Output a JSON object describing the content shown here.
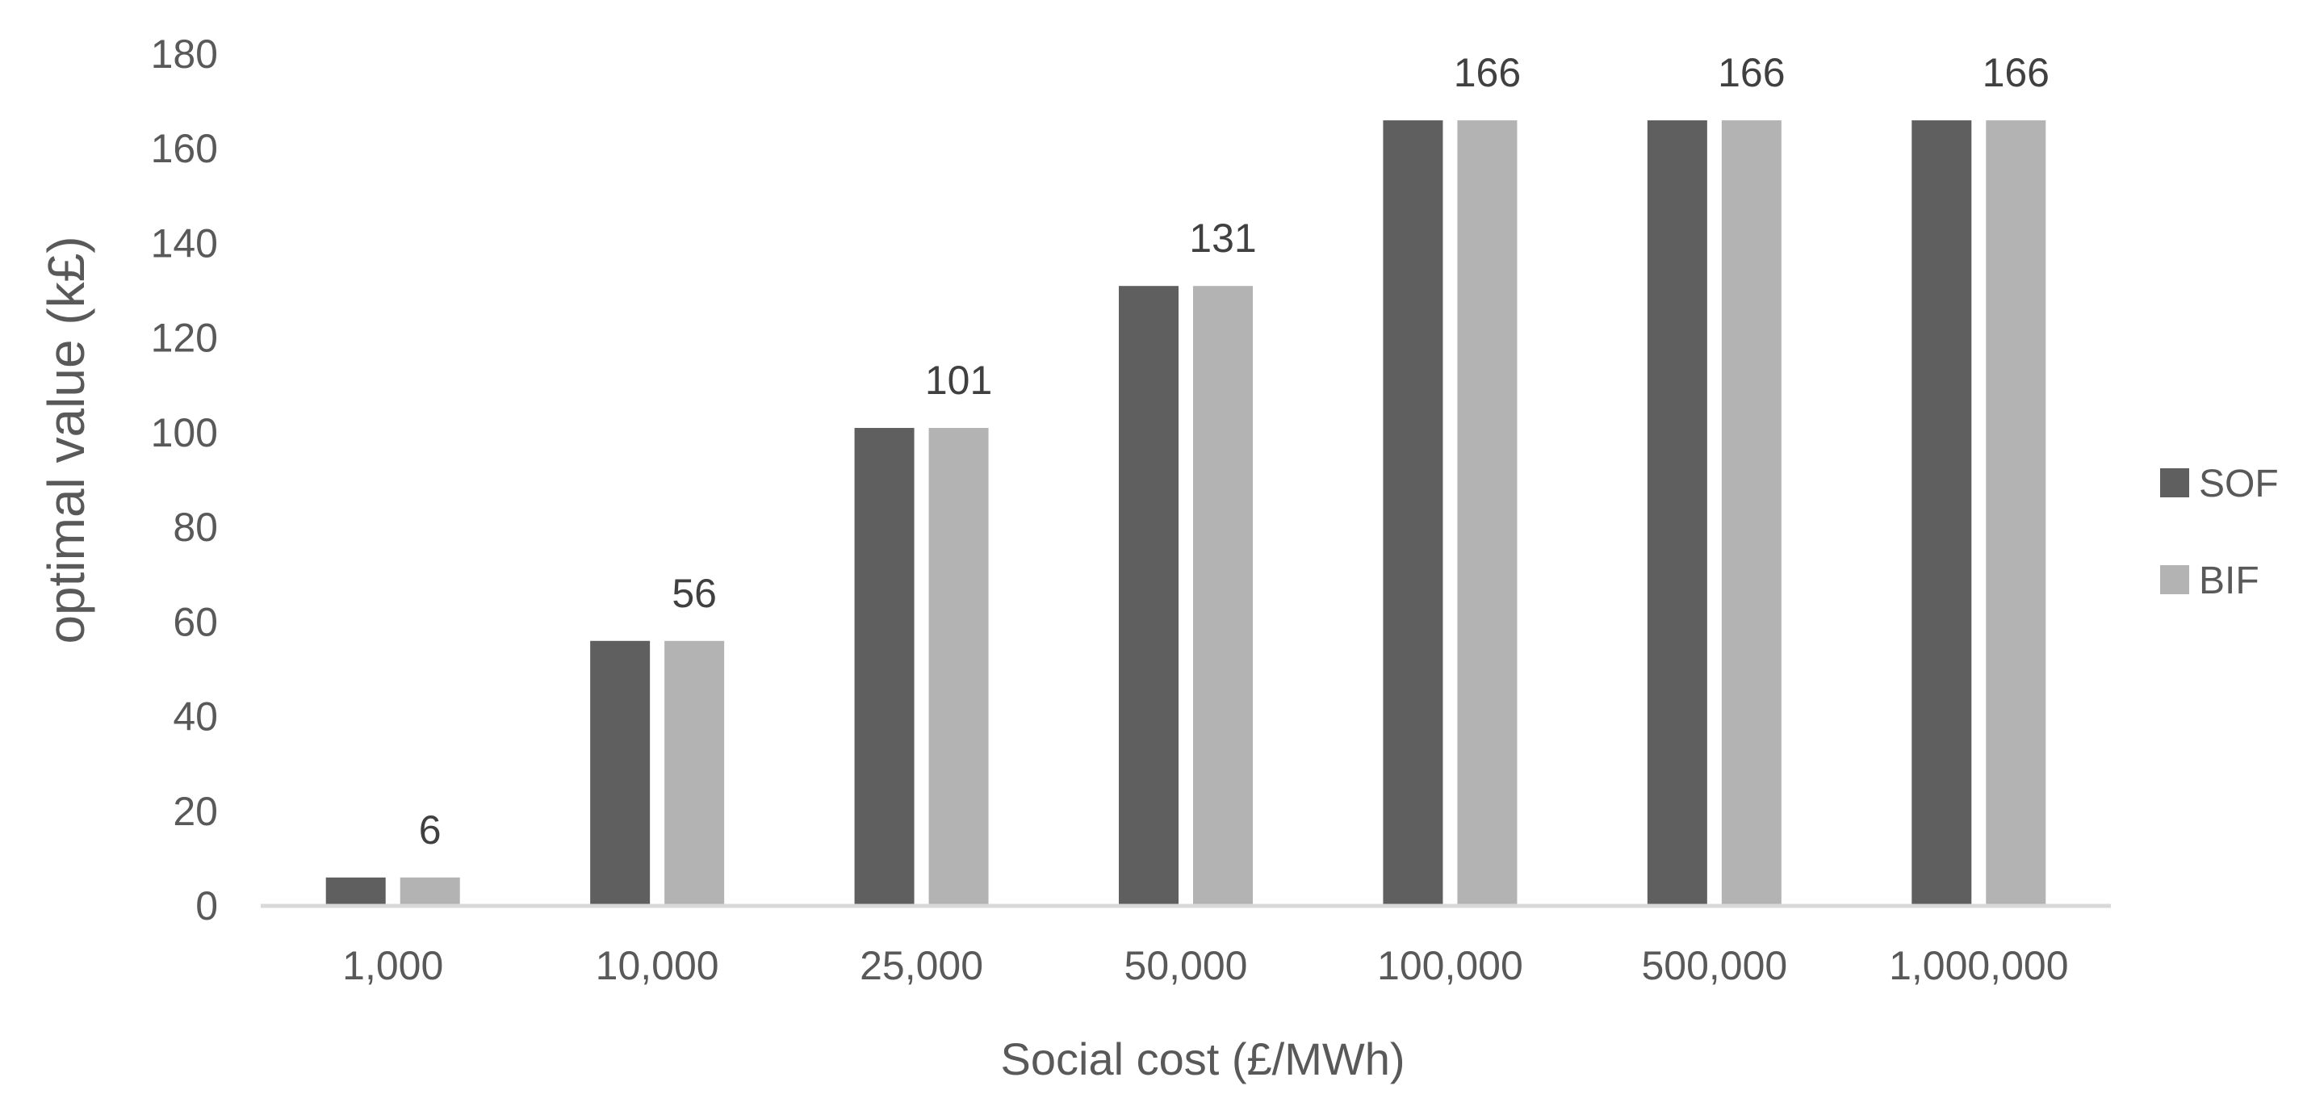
{
  "chart_data": {
    "type": "bar",
    "title": "",
    "xlabel": "Social cost (£/MWh)",
    "ylabel": "optimal value (k£)",
    "ylim": [
      0,
      180
    ],
    "yticks": [
      0,
      20,
      40,
      60,
      80,
      100,
      120,
      140,
      160,
      180
    ],
    "ytick_labels": [
      "0",
      "20",
      "40",
      "60",
      "80",
      "100",
      "120",
      "140",
      "160",
      "180"
    ],
    "grid": false,
    "legend_position": "right",
    "categories": [
      "1,000",
      "10,000",
      "25,000",
      "50,000",
      "100,000",
      "500,000",
      "1,000,000"
    ],
    "series": [
      {
        "name": "SOF",
        "color": "#5f5f5f",
        "values": [
          6,
          56,
          101,
          131,
          166,
          166,
          166
        ]
      },
      {
        "name": "BIF",
        "color": "#b3b3b3",
        "values": [
          6,
          56,
          101,
          131,
          166,
          166,
          166
        ]
      }
    ],
    "data_labels": [
      "6",
      "56",
      "101",
      "131",
      "166",
      "166",
      "166"
    ],
    "axis_color": "#d9d9d9"
  }
}
